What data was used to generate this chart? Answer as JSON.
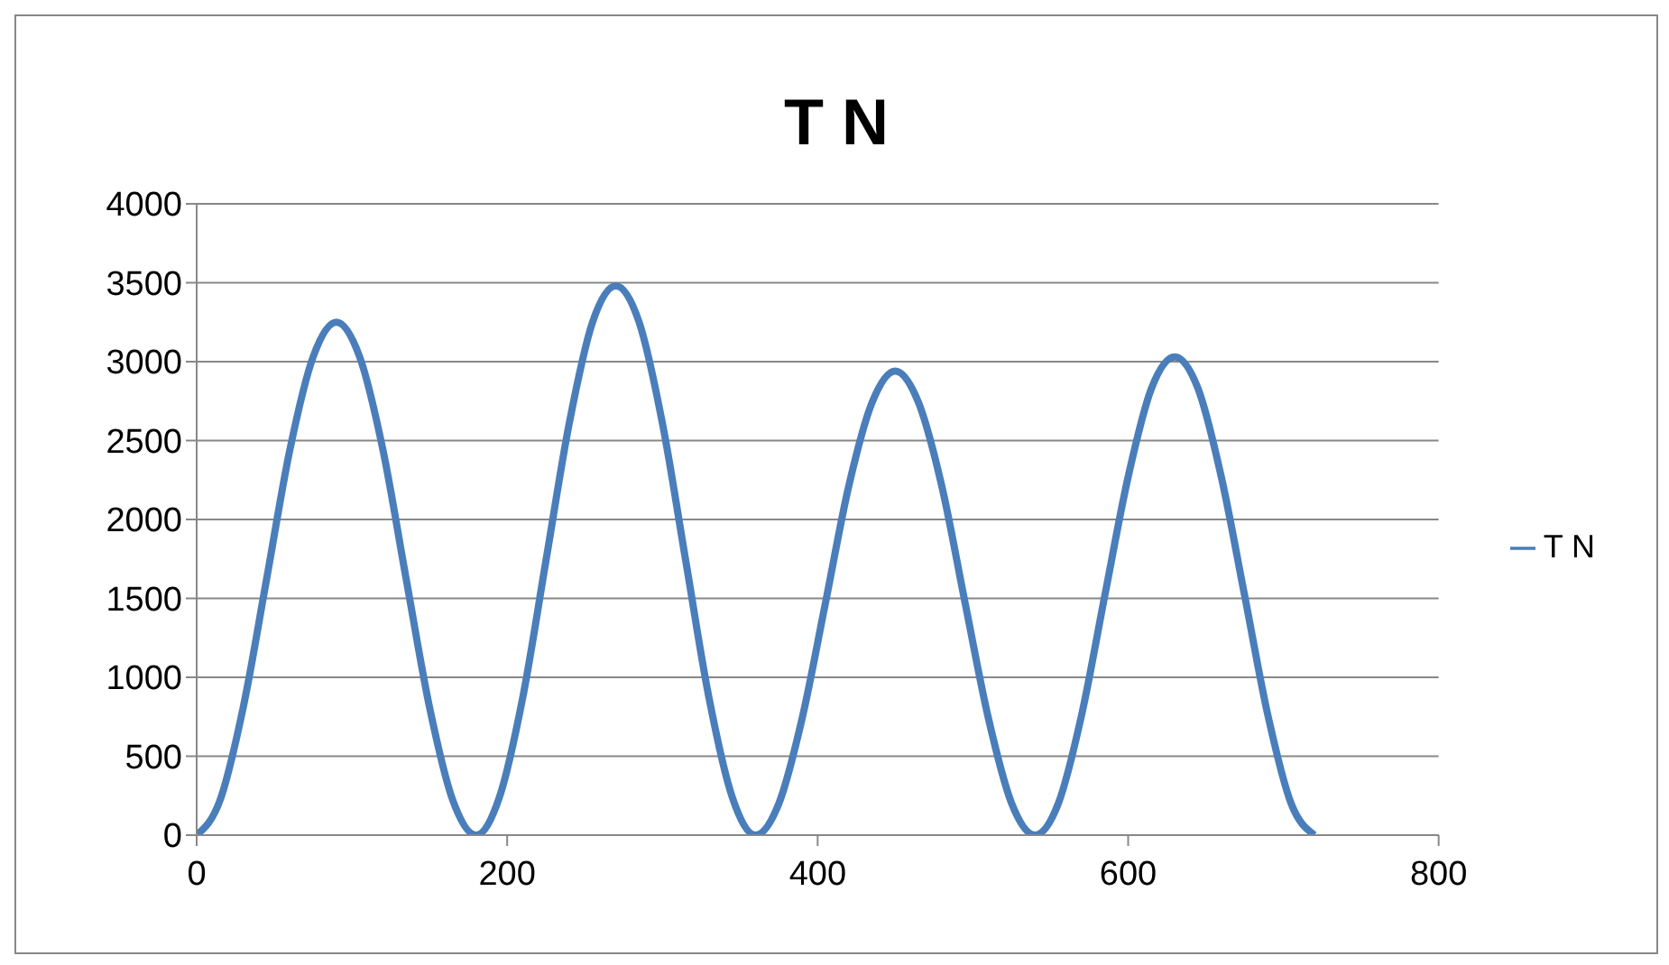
{
  "chart_data": {
    "type": "line",
    "title": "T N",
    "x": [
      0,
      15,
      30,
      45,
      60,
      75,
      90,
      105,
      120,
      135,
      150,
      165,
      180,
      195,
      210,
      225,
      240,
      255,
      270,
      285,
      300,
      315,
      330,
      345,
      360,
      375,
      390,
      405,
      420,
      435,
      450,
      465,
      480,
      495,
      510,
      525,
      540,
      555,
      570,
      585,
      600,
      615,
      630,
      645,
      660,
      675,
      690,
      705,
      720
    ],
    "series": [
      {
        "name": "T N",
        "color": "#4a7ebb",
        "values": [
          0,
          220,
          810,
          1620,
          2440,
          3030,
          3250,
          3030,
          2440,
          1620,
          810,
          220,
          0,
          240,
          870,
          1740,
          2610,
          3250,
          3480,
          3250,
          2610,
          1740,
          870,
          240,
          0,
          200,
          740,
          1470,
          2210,
          2740,
          2940,
          2740,
          2210,
          1470,
          740,
          200,
          0,
          200,
          760,
          1520,
          2270,
          2830,
          3030,
          2830,
          2270,
          1520,
          760,
          200,
          0
        ]
      }
    ],
    "xlim": [
      0,
      800
    ],
    "xticks": [
      0,
      200,
      400,
      600,
      800
    ],
    "ylim": [
      0,
      4000
    ],
    "yticks": [
      0,
      500,
      1000,
      1500,
      2000,
      2500,
      3000,
      3500,
      4000
    ],
    "grid": "y",
    "legend": "right",
    "marker": "none",
    "line_style": "solid"
  }
}
